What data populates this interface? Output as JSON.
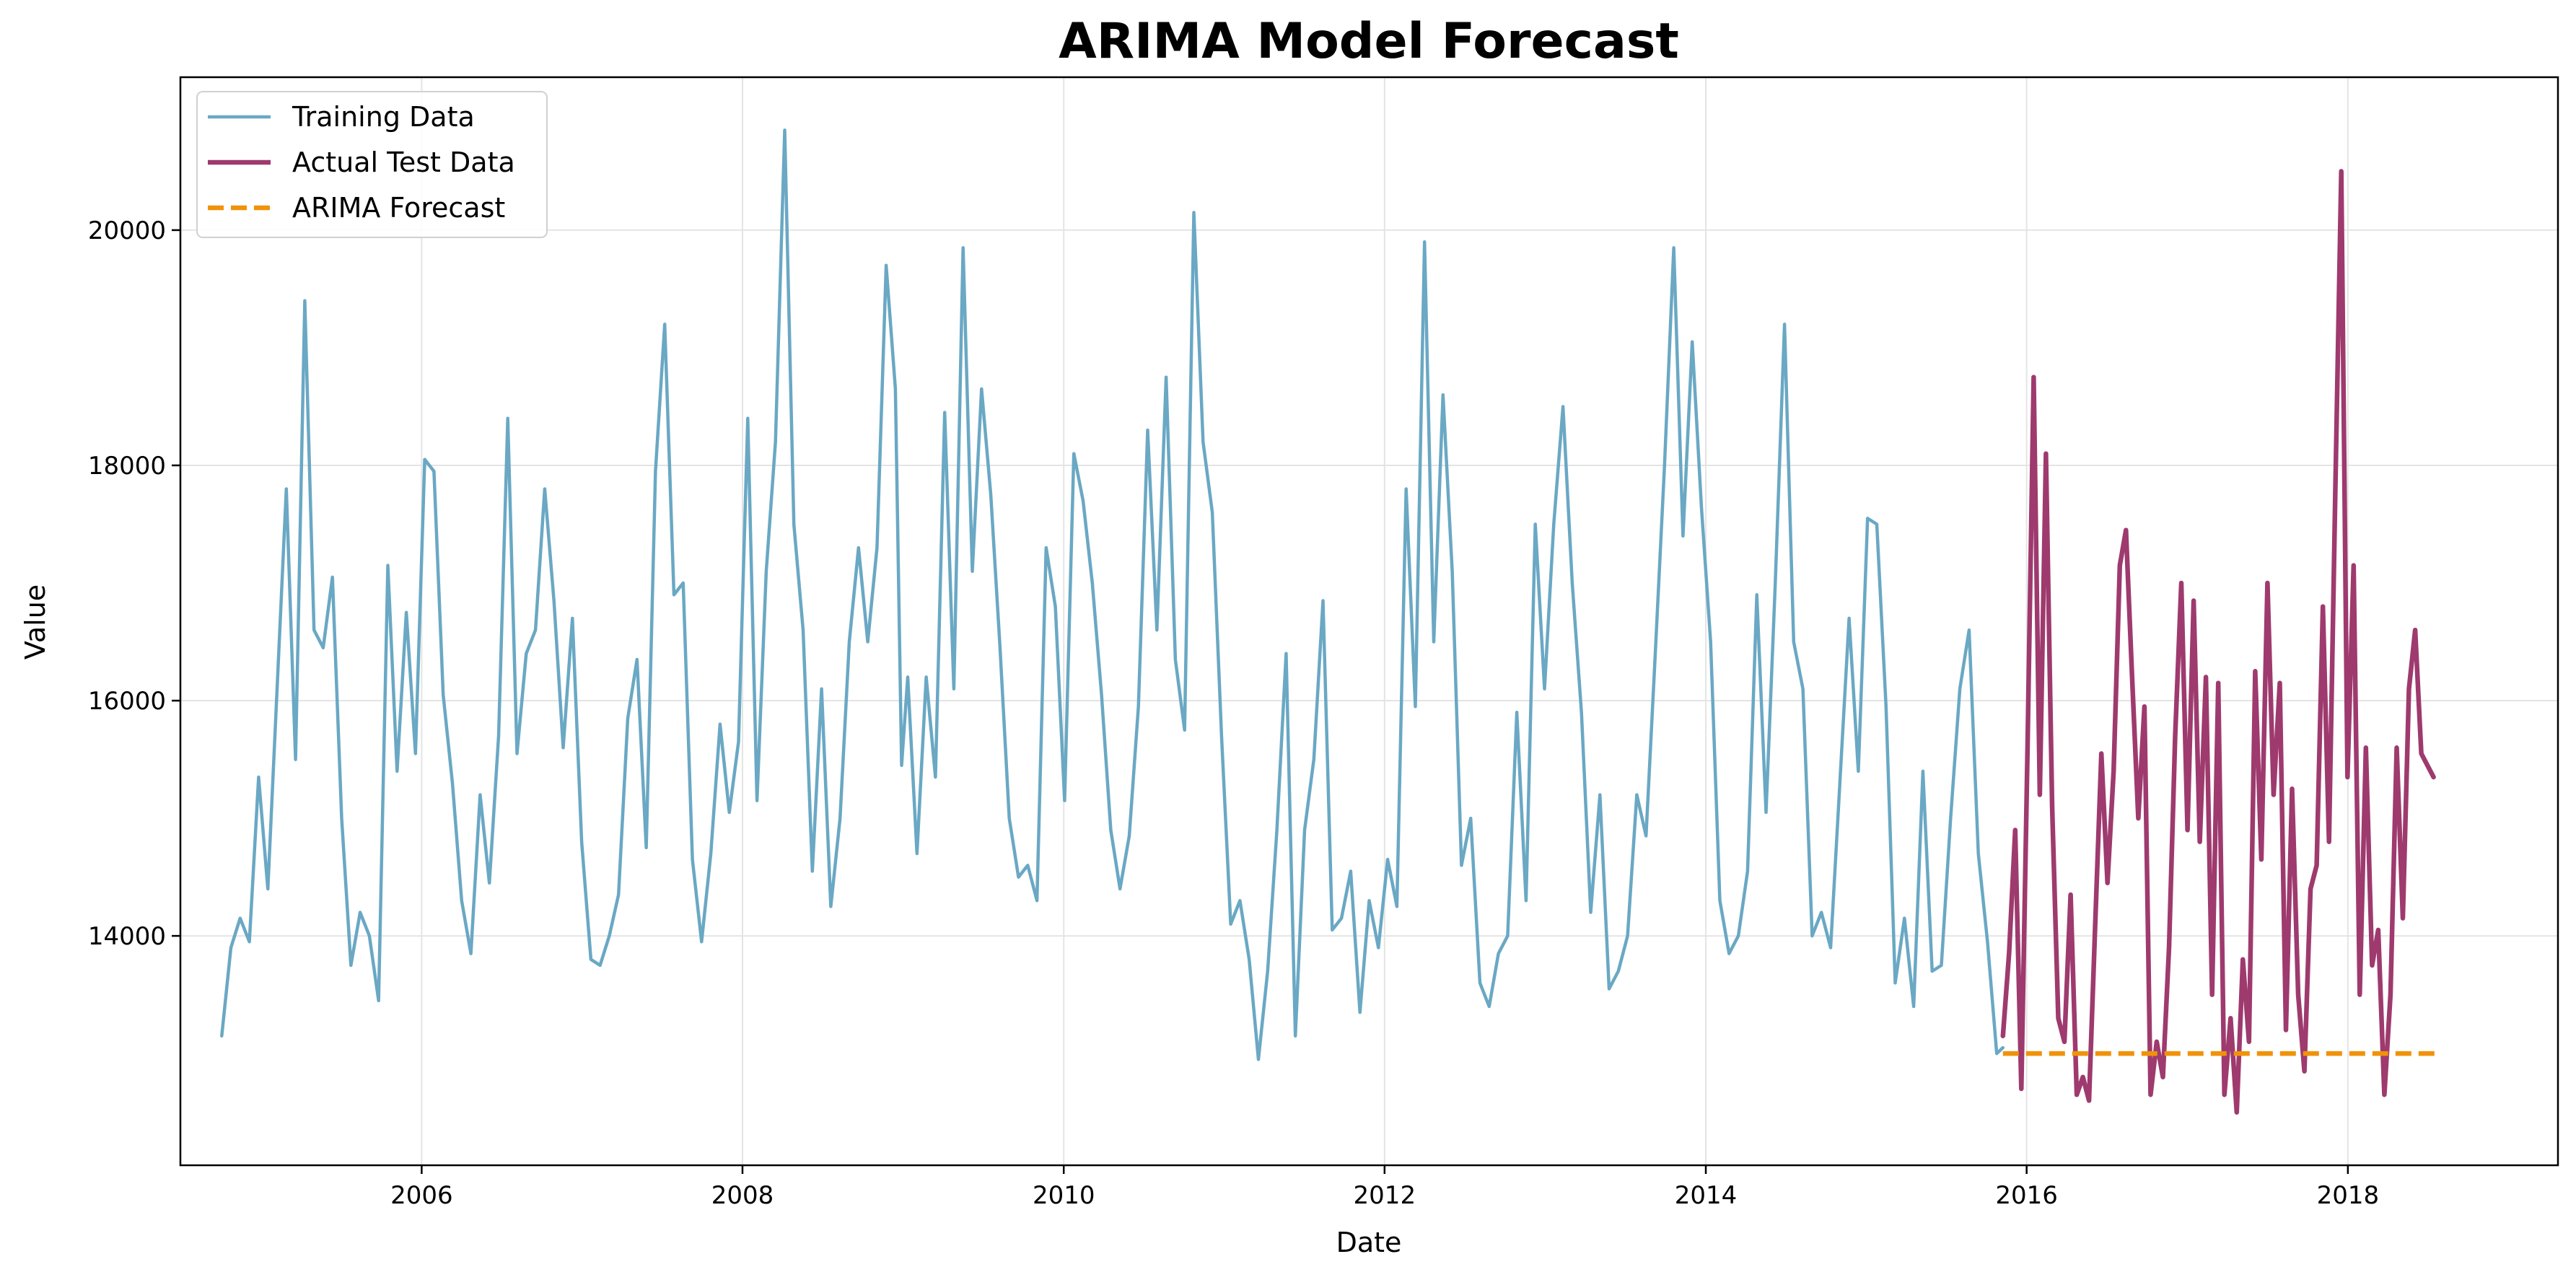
{
  "chart_data": {
    "type": "line",
    "title": "ARIMA Model Forecast",
    "xlabel": "Date",
    "ylabel": "Value",
    "x_ticks": [
      "2006",
      "2008",
      "2010",
      "2012",
      "2014",
      "2016",
      "2018"
    ],
    "y_ticks": [
      "14000",
      "16000",
      "18000",
      "20000"
    ],
    "xlim": [
      "2004-07-01",
      "2019-04-24"
    ],
    "ylim": [
      12050,
      21300
    ],
    "grid": true,
    "legend_position": "top-left",
    "series": [
      {
        "name": "Training Data",
        "color": "#6aa8c4",
        "style": "solid",
        "points": [
          [
            "2004-10-03",
            13150
          ],
          [
            "2004-10-24",
            13900
          ],
          [
            "2004-11-14",
            14150
          ],
          [
            "2004-12-05",
            13950
          ],
          [
            "2004-12-26",
            15350
          ],
          [
            "2005-01-16",
            14400
          ],
          [
            "2005-02-06",
            16100
          ],
          [
            "2005-02-27",
            17800
          ],
          [
            "2005-03-20",
            15500
          ],
          [
            "2005-04-10",
            19400
          ],
          [
            "2005-05-01",
            16600
          ],
          [
            "2005-05-22",
            16450
          ],
          [
            "2005-06-12",
            17050
          ],
          [
            "2005-07-03",
            15000
          ],
          [
            "2005-07-24",
            13750
          ],
          [
            "2005-08-14",
            14200
          ],
          [
            "2005-09-04",
            14000
          ],
          [
            "2005-09-25",
            13450
          ],
          [
            "2005-10-16",
            17150
          ],
          [
            "2005-11-06",
            15400
          ],
          [
            "2005-11-27",
            16750
          ],
          [
            "2005-12-18",
            15550
          ],
          [
            "2006-01-08",
            18050
          ],
          [
            "2006-01-29",
            17950
          ],
          [
            "2006-02-19",
            16050
          ],
          [
            "2006-03-12",
            15300
          ],
          [
            "2006-04-02",
            14300
          ],
          [
            "2006-04-23",
            13850
          ],
          [
            "2006-05-14",
            15200
          ],
          [
            "2006-06-04",
            14450
          ],
          [
            "2006-06-25",
            15700
          ],
          [
            "2006-07-16",
            18400
          ],
          [
            "2006-08-06",
            15550
          ],
          [
            "2006-08-27",
            16400
          ],
          [
            "2006-09-17",
            16600
          ],
          [
            "2006-10-08",
            17800
          ],
          [
            "2006-10-29",
            16850
          ],
          [
            "2006-11-19",
            15600
          ],
          [
            "2006-12-10",
            16700
          ],
          [
            "2006-12-31",
            14800
          ],
          [
            "2007-01-21",
            13800
          ],
          [
            "2007-02-11",
            13750
          ],
          [
            "2007-03-04",
            14000
          ],
          [
            "2007-03-25",
            14350
          ],
          [
            "2007-04-15",
            15850
          ],
          [
            "2007-05-06",
            16350
          ],
          [
            "2007-05-27",
            14750
          ],
          [
            "2007-06-17",
            17950
          ],
          [
            "2007-07-08",
            19200
          ],
          [
            "2007-07-29",
            16900
          ],
          [
            "2007-08-19",
            17000
          ],
          [
            "2007-09-09",
            14650
          ],
          [
            "2007-09-30",
            13950
          ],
          [
            "2007-10-21",
            14700
          ],
          [
            "2007-11-11",
            15800
          ],
          [
            "2007-12-02",
            15050
          ],
          [
            "2007-12-23",
            15650
          ],
          [
            "2008-01-13",
            18400
          ],
          [
            "2008-02-03",
            15150
          ],
          [
            "2008-02-24",
            17100
          ],
          [
            "2008-03-16",
            18200
          ],
          [
            "2008-04-06",
            20850
          ],
          [
            "2008-04-27",
            17500
          ],
          [
            "2008-05-18",
            16600
          ],
          [
            "2008-06-08",
            14550
          ],
          [
            "2008-06-29",
            16100
          ],
          [
            "2008-07-20",
            14250
          ],
          [
            "2008-08-10",
            15000
          ],
          [
            "2008-08-31",
            16500
          ],
          [
            "2008-09-21",
            17300
          ],
          [
            "2008-10-12",
            16500
          ],
          [
            "2008-11-02",
            17300
          ],
          [
            "2008-11-23",
            19700
          ],
          [
            "2008-12-14",
            18650
          ],
          [
            "2008-12-28",
            15450
          ],
          [
            "2009-01-11",
            16200
          ],
          [
            "2009-02-01",
            14700
          ],
          [
            "2009-02-22",
            16200
          ],
          [
            "2009-03-15",
            15350
          ],
          [
            "2009-04-05",
            18450
          ],
          [
            "2009-04-26",
            16100
          ],
          [
            "2009-05-17",
            19850
          ],
          [
            "2009-06-07",
            17100
          ],
          [
            "2009-06-28",
            18650
          ],
          [
            "2009-07-19",
            17750
          ],
          [
            "2009-08-09",
            16450
          ],
          [
            "2009-08-30",
            15000
          ],
          [
            "2009-09-20",
            14500
          ],
          [
            "2009-10-11",
            14600
          ],
          [
            "2009-11-01",
            14300
          ],
          [
            "2009-11-22",
            17300
          ],
          [
            "2009-12-13",
            16800
          ],
          [
            "2010-01-03",
            15150
          ],
          [
            "2010-01-24",
            18100
          ],
          [
            "2010-02-14",
            17700
          ],
          [
            "2010-03-07",
            17000
          ],
          [
            "2010-03-28",
            16050
          ],
          [
            "2010-04-18",
            14900
          ],
          [
            "2010-05-09",
            14400
          ],
          [
            "2010-05-30",
            14850
          ],
          [
            "2010-06-20",
            15950
          ],
          [
            "2010-07-11",
            18300
          ],
          [
            "2010-08-01",
            16600
          ],
          [
            "2010-08-22",
            18750
          ],
          [
            "2010-09-12",
            16350
          ],
          [
            "2010-10-03",
            15750
          ],
          [
            "2010-10-24",
            20150
          ],
          [
            "2010-11-14",
            18200
          ],
          [
            "2010-12-05",
            17600
          ],
          [
            "2010-12-26",
            15700
          ],
          [
            "2011-01-16",
            14100
          ],
          [
            "2011-02-06",
            14300
          ],
          [
            "2011-02-27",
            13800
          ],
          [
            "2011-03-20",
            12950
          ],
          [
            "2011-04-10",
            13700
          ],
          [
            "2011-05-01",
            14900
          ],
          [
            "2011-05-22",
            16400
          ],
          [
            "2011-06-12",
            13150
          ],
          [
            "2011-07-03",
            14900
          ],
          [
            "2011-07-24",
            15500
          ],
          [
            "2011-08-14",
            16850
          ],
          [
            "2011-09-04",
            14050
          ],
          [
            "2011-09-25",
            14150
          ],
          [
            "2011-10-16",
            14550
          ],
          [
            "2011-11-06",
            13350
          ],
          [
            "2011-11-27",
            14300
          ],
          [
            "2011-12-18",
            13900
          ],
          [
            "2012-01-08",
            14650
          ],
          [
            "2012-01-29",
            14250
          ],
          [
            "2012-02-19",
            17800
          ],
          [
            "2012-03-11",
            15950
          ],
          [
            "2012-04-01",
            19900
          ],
          [
            "2012-04-22",
            16500
          ],
          [
            "2012-05-13",
            18600
          ],
          [
            "2012-06-03",
            17100
          ],
          [
            "2012-06-24",
            14600
          ],
          [
            "2012-07-15",
            15000
          ],
          [
            "2012-08-05",
            13600
          ],
          [
            "2012-08-26",
            13400
          ],
          [
            "2012-09-16",
            13850
          ],
          [
            "2012-10-07",
            14000
          ],
          [
            "2012-10-28",
            15900
          ],
          [
            "2012-11-18",
            14300
          ],
          [
            "2012-12-09",
            17500
          ],
          [
            "2012-12-30",
            16100
          ],
          [
            "2013-01-20",
            17500
          ],
          [
            "2013-02-10",
            18500
          ],
          [
            "2013-03-03",
            17000
          ],
          [
            "2013-03-24",
            15900
          ],
          [
            "2013-04-14",
            14200
          ],
          [
            "2013-05-05",
            15200
          ],
          [
            "2013-05-26",
            13550
          ],
          [
            "2013-06-16",
            13700
          ],
          [
            "2013-07-07",
            14000
          ],
          [
            "2013-07-28",
            15200
          ],
          [
            "2013-08-18",
            14850
          ],
          [
            "2013-09-08",
            16400
          ],
          [
            "2013-09-29",
            18000
          ],
          [
            "2013-10-20",
            19850
          ],
          [
            "2013-11-10",
            17400
          ],
          [
            "2013-12-01",
            19050
          ],
          [
            "2013-12-22",
            17650
          ],
          [
            "2014-01-12",
            16500
          ],
          [
            "2014-02-02",
            14300
          ],
          [
            "2014-02-23",
            13850
          ],
          [
            "2014-03-16",
            14000
          ],
          [
            "2014-04-06",
            14550
          ],
          [
            "2014-04-27",
            16900
          ],
          [
            "2014-05-18",
            15050
          ],
          [
            "2014-06-08",
            17000
          ],
          [
            "2014-06-29",
            19200
          ],
          [
            "2014-07-20",
            16500
          ],
          [
            "2014-08-10",
            16100
          ],
          [
            "2014-08-31",
            14000
          ],
          [
            "2014-09-21",
            14200
          ],
          [
            "2014-10-12",
            13900
          ],
          [
            "2014-11-02",
            15300
          ],
          [
            "2014-11-23",
            16700
          ],
          [
            "2014-12-14",
            15400
          ],
          [
            "2015-01-04",
            17550
          ],
          [
            "2015-01-25",
            17500
          ],
          [
            "2015-02-15",
            15950
          ],
          [
            "2015-03-08",
            13600
          ],
          [
            "2015-03-29",
            14150
          ],
          [
            "2015-04-19",
            13400
          ],
          [
            "2015-05-10",
            15400
          ],
          [
            "2015-05-31",
            13700
          ],
          [
            "2015-06-21",
            13750
          ],
          [
            "2015-07-12",
            15000
          ],
          [
            "2015-08-02",
            16100
          ],
          [
            "2015-08-23",
            16600
          ],
          [
            "2015-09-13",
            14700
          ],
          [
            "2015-10-04",
            13950
          ],
          [
            "2015-10-25",
            13000
          ],
          [
            "2015-11-08",
            13050
          ]
        ]
      },
      {
        "name": "Actual Test Data",
        "color": "#9e3a6e",
        "style": "solid",
        "points": [
          [
            "2015-11-08",
            13150
          ],
          [
            "2015-11-22",
            13850
          ],
          [
            "2015-12-06",
            14900
          ],
          [
            "2015-12-20",
            12700
          ],
          [
            "2016-01-03",
            15600
          ],
          [
            "2016-01-17",
            18750
          ],
          [
            "2016-01-31",
            15200
          ],
          [
            "2016-02-14",
            18100
          ],
          [
            "2016-02-28",
            15100
          ],
          [
            "2016-03-13",
            13300
          ],
          [
            "2016-03-27",
            13100
          ],
          [
            "2016-04-10",
            14350
          ],
          [
            "2016-04-24",
            12650
          ],
          [
            "2016-05-08",
            12800
          ],
          [
            "2016-05-22",
            12600
          ],
          [
            "2016-06-05",
            14100
          ],
          [
            "2016-06-19",
            15550
          ],
          [
            "2016-07-03",
            14450
          ],
          [
            "2016-07-17",
            15400
          ],
          [
            "2016-07-31",
            17150
          ],
          [
            "2016-08-14",
            17450
          ],
          [
            "2016-08-28",
            16200
          ],
          [
            "2016-09-11",
            15000
          ],
          [
            "2016-09-25",
            15950
          ],
          [
            "2016-10-09",
            12650
          ],
          [
            "2016-10-23",
            13100
          ],
          [
            "2016-11-06",
            12800
          ],
          [
            "2016-11-20",
            13900
          ],
          [
            "2016-12-04",
            15700
          ],
          [
            "2016-12-18",
            17000
          ],
          [
            "2017-01-01",
            14900
          ],
          [
            "2017-01-15",
            16850
          ],
          [
            "2017-01-29",
            14800
          ],
          [
            "2017-02-12",
            16200
          ],
          [
            "2017-02-26",
            13500
          ],
          [
            "2017-03-12",
            16150
          ],
          [
            "2017-03-26",
            12650
          ],
          [
            "2017-04-09",
            13300
          ],
          [
            "2017-04-23",
            12500
          ],
          [
            "2017-05-07",
            13800
          ],
          [
            "2017-05-21",
            13100
          ],
          [
            "2017-06-04",
            16250
          ],
          [
            "2017-06-18",
            14650
          ],
          [
            "2017-07-02",
            17000
          ],
          [
            "2017-07-16",
            15200
          ],
          [
            "2017-07-30",
            16150
          ],
          [
            "2017-08-13",
            13200
          ],
          [
            "2017-08-27",
            15250
          ],
          [
            "2017-09-10",
            13500
          ],
          [
            "2017-09-24",
            12850
          ],
          [
            "2017-10-08",
            14400
          ],
          [
            "2017-10-22",
            14600
          ],
          [
            "2017-11-05",
            16800
          ],
          [
            "2017-11-19",
            14800
          ],
          [
            "2017-12-03",
            17700
          ],
          [
            "2017-12-17",
            20500
          ],
          [
            "2017-12-31",
            15350
          ],
          [
            "2018-01-14",
            17150
          ],
          [
            "2018-01-28",
            13500
          ],
          [
            "2018-02-11",
            15600
          ],
          [
            "2018-02-25",
            13750
          ],
          [
            "2018-03-11",
            14050
          ],
          [
            "2018-03-25",
            12650
          ],
          [
            "2018-04-08",
            13500
          ],
          [
            "2018-04-22",
            15600
          ],
          [
            "2018-05-06",
            14150
          ],
          [
            "2018-05-20",
            16100
          ],
          [
            "2018-06-03",
            16600
          ],
          [
            "2018-06-17",
            15550
          ],
          [
            "2018-07-01",
            15450
          ],
          [
            "2018-07-15",
            15350
          ]
        ]
      },
      {
        "name": "ARIMA Forecast",
        "color": "#f0920a",
        "style": "dashed",
        "points": [
          [
            "2015-11-08",
            13000
          ],
          [
            "2018-07-29",
            13000
          ]
        ]
      }
    ]
  }
}
